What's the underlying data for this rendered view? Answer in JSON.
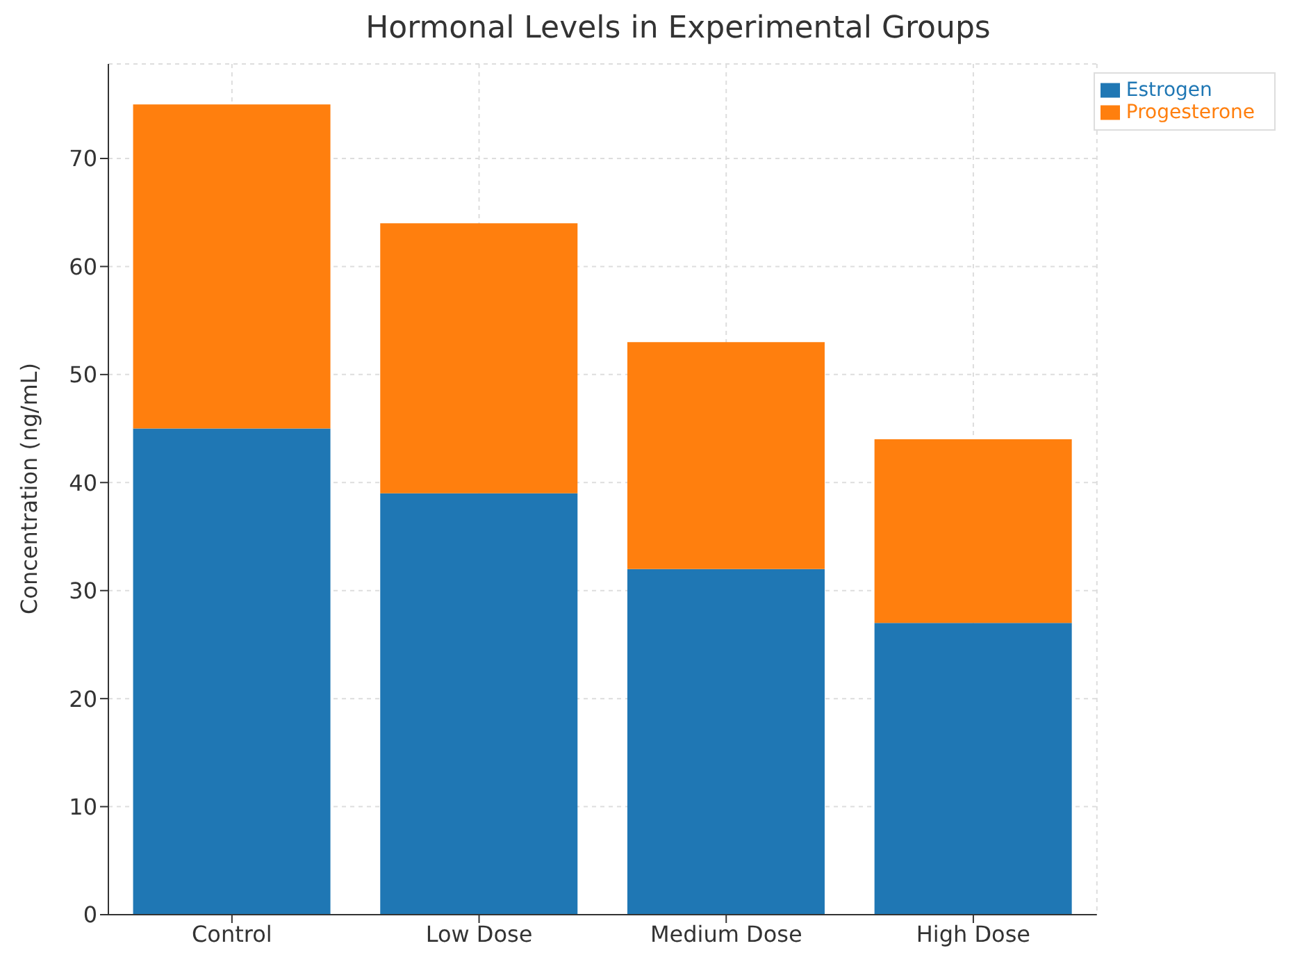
{
  "chart_data": {
    "type": "bar",
    "title": "Hormonal Levels in Experimental Groups",
    "ylabel": "Concentration (ng/mL)",
    "categories": [
      "Control",
      "Low Dose",
      "Medium Dose",
      "High Dose"
    ],
    "stacked": true,
    "series": [
      {
        "name": "Estrogen",
        "color": "#1f77b4",
        "values": [
          45,
          39,
          32,
          27
        ]
      },
      {
        "name": "Progesterone",
        "color": "#ff7f0e",
        "values": [
          30,
          25,
          21,
          17
        ]
      }
    ],
    "ylim": [
      0,
      78.75
    ],
    "yticks": [
      0,
      10,
      20,
      30,
      40,
      50,
      60,
      70
    ],
    "grid": true,
    "legend": "top right"
  }
}
